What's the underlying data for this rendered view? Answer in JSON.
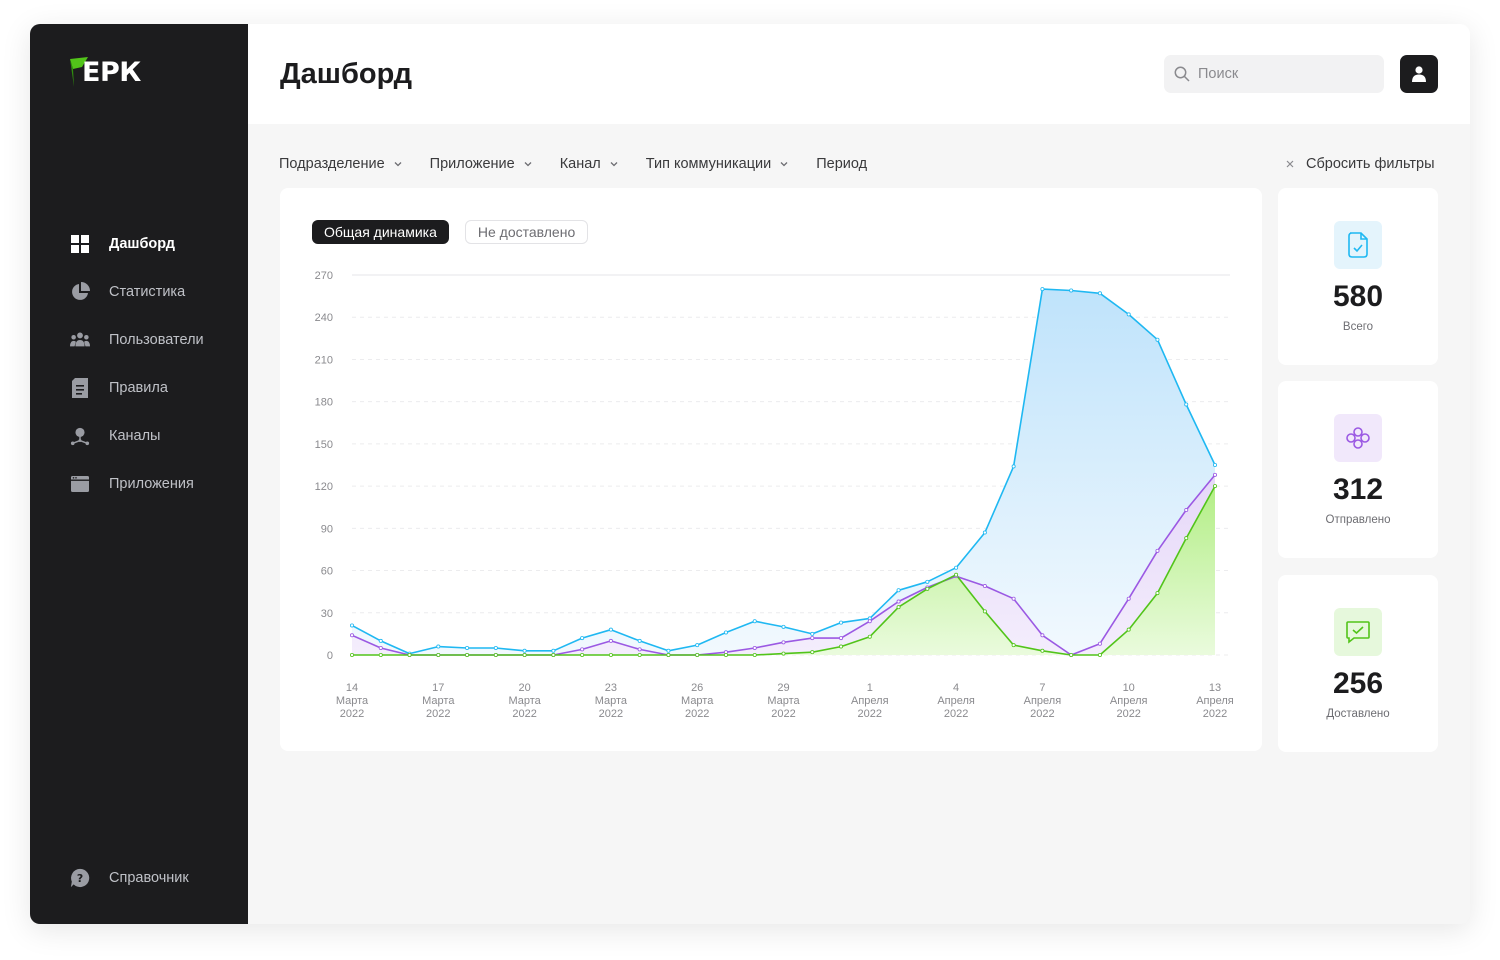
{
  "app": {
    "logo_text": "ЕРК"
  },
  "sidebar": {
    "items": [
      {
        "label": "Дашборд",
        "icon": "dashboard-icon",
        "active": true
      },
      {
        "label": "Статистика",
        "icon": "pie-chart-icon",
        "active": false
      },
      {
        "label": "Пользователи",
        "icon": "users-icon",
        "active": false
      },
      {
        "label": "Правила",
        "icon": "document-icon",
        "active": false
      },
      {
        "label": "Каналы",
        "icon": "channels-icon",
        "active": false
      },
      {
        "label": "Приложения",
        "icon": "window-icon",
        "active": false
      }
    ],
    "help": {
      "label": "Справочник",
      "icon": "help-icon"
    }
  },
  "header": {
    "title": "Дашборд",
    "search_placeholder": "Поиск",
    "search_value": ""
  },
  "filters": {
    "items": [
      "Подразделение",
      "Приложение",
      "Канал",
      "Тип коммуникации",
      "Период"
    ],
    "reset_label": "Сбросить фильтры"
  },
  "tabs": {
    "active": "Общая динамика",
    "inactive": "Не доставлено"
  },
  "stats": [
    {
      "value": "580",
      "label": "Всего",
      "icon": "document-check-icon",
      "color": "#1fb8f2",
      "bg": "#e4f4fc"
    },
    {
      "value": "312",
      "label": "Отправлено",
      "icon": "nodes-icon",
      "color": "#9b59e3",
      "bg": "#f1e8fb"
    },
    {
      "value": "256",
      "label": "Доставлено",
      "icon": "message-check-icon",
      "color": "#52c41a",
      "bg": "#e6f8dc"
    }
  ],
  "colors": {
    "blue": "#1fb8f2",
    "purple": "#9b59e3",
    "green": "#52c41a",
    "dark": "#1c1c1e"
  },
  "chart_data": {
    "type": "area",
    "x": [
      "2022-03-14",
      "2022-03-15",
      "2022-03-16",
      "2022-03-17",
      "2022-03-18",
      "2022-03-19",
      "2022-03-20",
      "2022-03-21",
      "2022-03-22",
      "2022-03-23",
      "2022-03-24",
      "2022-03-25",
      "2022-03-26",
      "2022-03-27",
      "2022-03-28",
      "2022-03-29",
      "2022-03-30",
      "2022-03-31",
      "2022-04-01",
      "2022-04-02",
      "2022-04-03",
      "2022-04-04",
      "2022-04-05",
      "2022-04-06",
      "2022-04-07",
      "2022-04-08",
      "2022-04-09",
      "2022-04-10",
      "2022-04-11",
      "2022-04-12",
      "2022-04-13"
    ],
    "x_ticks": [
      {
        "day": "14",
        "month": "Марта",
        "year": "2022"
      },
      {
        "day": "17",
        "month": "Марта",
        "year": "2022"
      },
      {
        "day": "20",
        "month": "Марта",
        "year": "2022"
      },
      {
        "day": "23",
        "month": "Марта",
        "year": "2022"
      },
      {
        "day": "26",
        "month": "Марта",
        "year": "2022"
      },
      {
        "day": "29",
        "month": "Марта",
        "year": "2022"
      },
      {
        "day": "1",
        "month": "Апреля",
        "year": "2022"
      },
      {
        "day": "4",
        "month": "Апреля",
        "year": "2022"
      },
      {
        "day": "7",
        "month": "Апреля",
        "year": "2022"
      },
      {
        "day": "10",
        "month": "Апреля",
        "year": "2022"
      },
      {
        "day": "13",
        "month": "Апреля",
        "year": "2022"
      }
    ],
    "y_ticks": [
      0,
      30,
      60,
      90,
      120,
      150,
      180,
      210,
      240,
      270
    ],
    "ylim": [
      0,
      270
    ],
    "grid": true,
    "series": [
      {
        "key": "total",
        "color": "#1fb8f2",
        "values": [
          21,
          10,
          1,
          6,
          5,
          5,
          3,
          3,
          12,
          18,
          10,
          3,
          7,
          16,
          24,
          20,
          15,
          23,
          26,
          46,
          52,
          62,
          87,
          134,
          260,
          259,
          257,
          242,
          224,
          178,
          135
        ]
      },
      {
        "key": "sent",
        "color": "#9b59e3",
        "values": [
          14,
          5,
          0,
          0,
          0,
          0,
          0,
          0,
          4,
          10,
          4,
          0,
          0,
          2,
          5,
          9,
          12,
          12,
          24,
          38,
          48,
          56,
          49,
          40,
          14,
          0,
          8,
          40,
          74,
          103,
          128
        ]
      },
      {
        "key": "delivered",
        "color": "#52c41a",
        "values": [
          0,
          0,
          0,
          0,
          0,
          0,
          0,
          0,
          0,
          0,
          0,
          0,
          0,
          0,
          0,
          1,
          2,
          6,
          13,
          34,
          47,
          57,
          31,
          7,
          3,
          0,
          0,
          18,
          44,
          83,
          120
        ]
      }
    ]
  }
}
